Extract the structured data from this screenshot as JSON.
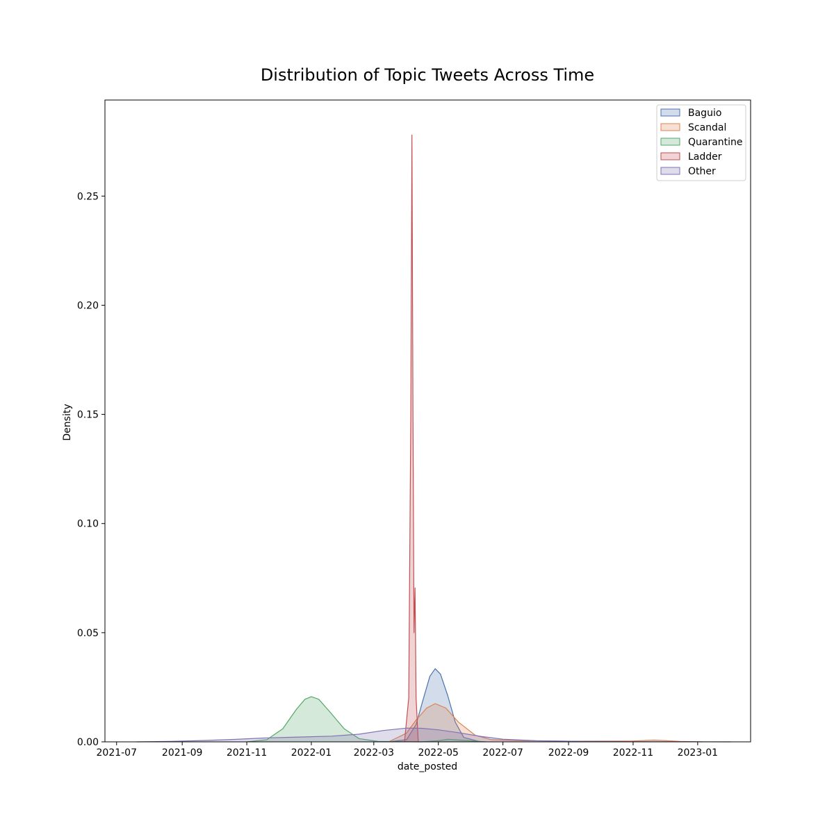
{
  "chart_data": {
    "type": "area",
    "subtype": "kde",
    "title": "Distribution of Topic Tweets Across Time",
    "xlabel": "date_posted",
    "ylabel": "Density",
    "x_ticks": [
      "2021-07",
      "2021-09",
      "2021-11",
      "2022-01",
      "2022-03",
      "2022-05",
      "2022-07",
      "2022-09",
      "2022-11",
      "2023-01"
    ],
    "y_ticks": [
      "0.00",
      "0.05",
      "0.10",
      "0.15",
      "0.20",
      "0.25"
    ],
    "xlim": [
      "2021-06-20",
      "2023-02-20"
    ],
    "ylim": [
      0,
      0.294
    ],
    "grid": false,
    "legend_position": "top-right",
    "series": [
      {
        "name": "Baguio",
        "color": "#4c72b0",
        "fill": "#4c72b033",
        "points": [
          [
            "2022-03-15",
            0
          ],
          [
            "2022-04-01",
            0.001
          ],
          [
            "2022-04-10",
            0.008
          ],
          [
            "2022-04-17",
            0.02
          ],
          [
            "2022-04-23",
            0.03
          ],
          [
            "2022-04-28",
            0.0335
          ],
          [
            "2022-05-03",
            0.031
          ],
          [
            "2022-05-10",
            0.021
          ],
          [
            "2022-05-17",
            0.009
          ],
          [
            "2022-05-25",
            0.002
          ],
          [
            "2022-06-10",
            0
          ]
        ]
      },
      {
        "name": "Scandal",
        "color": "#dd8452",
        "fill": "#dd845233",
        "points": [
          [
            "2022-03-15",
            0
          ],
          [
            "2022-04-01",
            0.004
          ],
          [
            "2022-04-10",
            0.01
          ],
          [
            "2022-04-20",
            0.0155
          ],
          [
            "2022-04-28",
            0.0175
          ],
          [
            "2022-05-08",
            0.0155
          ],
          [
            "2022-05-20",
            0.009
          ],
          [
            "2022-06-05",
            0.003
          ],
          [
            "2022-06-20",
            0.001
          ],
          [
            "2022-07-15",
            0.0006
          ],
          [
            "2022-09-01",
            0.0003
          ],
          [
            "2022-11-01",
            0.0004
          ],
          [
            "2022-11-21",
            0.0008
          ],
          [
            "2022-12-15",
            0.0002
          ],
          [
            "2023-01-05",
            0
          ]
        ]
      },
      {
        "name": "Quarantine",
        "color": "#55a868",
        "fill": "#55a86833",
        "points": [
          [
            "2021-11-01",
            0
          ],
          [
            "2021-11-20",
            0.001
          ],
          [
            "2021-12-05",
            0.006
          ],
          [
            "2021-12-18",
            0.015
          ],
          [
            "2021-12-26",
            0.0195
          ],
          [
            "2022-01-01",
            0.0207
          ],
          [
            "2022-01-08",
            0.0195
          ],
          [
            "2022-01-18",
            0.014
          ],
          [
            "2022-02-01",
            0.006
          ],
          [
            "2022-02-15",
            0.0015
          ],
          [
            "2022-03-05",
            0.0002
          ],
          [
            "2022-04-15",
            0
          ],
          [
            "2022-05-01",
            0.0005
          ],
          [
            "2022-05-10",
            0.0012
          ],
          [
            "2022-05-22",
            0.0008
          ],
          [
            "2022-06-15",
            0
          ]
        ]
      },
      {
        "name": "Ladder",
        "color": "#c44e52",
        "fill": "#c44e5233",
        "points": [
          [
            "2022-03-30",
            0
          ],
          [
            "2022-04-03",
            0.02
          ],
          [
            "2022-04-05",
            0.15
          ],
          [
            "2022-04-06",
            0.278
          ],
          [
            "2022-04-07",
            0.15
          ],
          [
            "2022-04-08",
            0.05
          ],
          [
            "2022-04-09",
            0.0705
          ],
          [
            "2022-04-10",
            0.02
          ],
          [
            "2022-04-12",
            0
          ]
        ]
      },
      {
        "name": "Other",
        "color": "#8172b3",
        "fill": "#8172b333",
        "points": [
          [
            "2021-07-20",
            0
          ],
          [
            "2021-08-20",
            0.0002
          ],
          [
            "2021-09-20",
            0.0006
          ],
          [
            "2021-10-20",
            0.0011
          ],
          [
            "2021-11-20",
            0.0018
          ],
          [
            "2021-12-20",
            0.0022
          ],
          [
            "2022-01-20",
            0.0026
          ],
          [
            "2022-02-15",
            0.0035
          ],
          [
            "2022-03-10",
            0.0052
          ],
          [
            "2022-04-01",
            0.0063
          ],
          [
            "2022-04-15",
            0.0062
          ],
          [
            "2022-05-01",
            0.0055
          ],
          [
            "2022-05-20",
            0.0042
          ],
          [
            "2022-06-10",
            0.0025
          ],
          [
            "2022-07-01",
            0.0012
          ],
          [
            "2022-08-01",
            0.0005
          ],
          [
            "2022-09-15",
            0.0002
          ],
          [
            "2022-11-01",
            0.0001
          ],
          [
            "2023-02-01",
            0
          ]
        ]
      }
    ]
  }
}
